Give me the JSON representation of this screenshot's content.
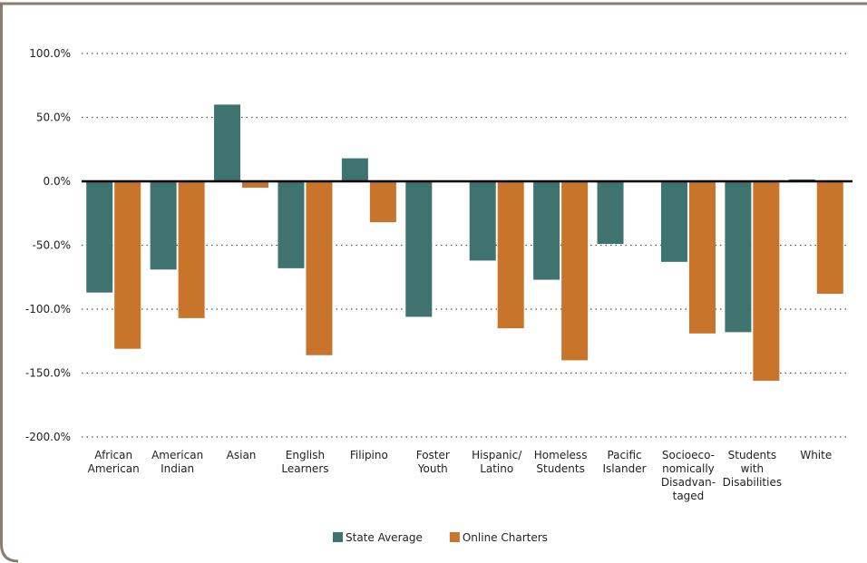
{
  "chart_data": {
    "type": "bar",
    "categories": [
      "African\nAmerican",
      "American\nIndian",
      "Asian",
      "English\nLearners",
      "Filipino",
      "Foster\nYouth",
      "Hispanic/\nLatino",
      "Homeless\nStudents",
      "Pacific\nIslander",
      "Socioeco-\nnomically\nDisadvan-\ntaged",
      "Students\nwith\nDisabilities",
      "White"
    ],
    "series": [
      {
        "name": "State Average",
        "color": "#3e7370",
        "values": [
          -87,
          -69,
          60,
          -68,
          18,
          -106,
          -62,
          -77,
          -49,
          -63,
          -118,
          1.5
        ]
      },
      {
        "name": "Online Charters",
        "color": "#c8742b",
        "values": [
          -131,
          -107,
          -5,
          -136,
          -32,
          null,
          -115,
          -140,
          null,
          -119,
          -156,
          -88
        ]
      }
    ],
    "ylim": [
      -200,
      100
    ],
    "yticks": [
      {
        "value": 100,
        "label": "100.0%"
      },
      {
        "value": 50,
        "label": "50.0%"
      },
      {
        "value": 0,
        "label": "0.0%"
      },
      {
        "value": -50,
        "label": "-50.0%"
      },
      {
        "value": -100,
        "label": "-100.0%"
      },
      {
        "value": -150,
        "label": "-150.0%"
      },
      {
        "value": -200,
        "label": "-200.0%"
      }
    ],
    "grid": true,
    "legend": "bottom"
  }
}
